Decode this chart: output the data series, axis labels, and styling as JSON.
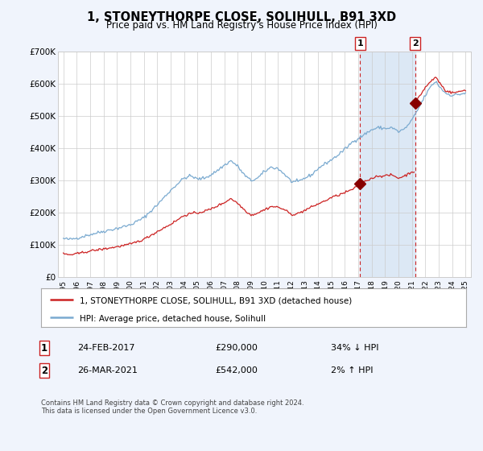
{
  "title": "1, STONEYTHORPE CLOSE, SOLIHULL, B91 3XD",
  "subtitle": "Price paid vs. HM Land Registry's House Price Index (HPI)",
  "legend_line1": "1, STONEYTHORPE CLOSE, SOLIHULL, B91 3XD (detached house)",
  "legend_line2": "HPI: Average price, detached house, Solihull",
  "footer": "Contains HM Land Registry data © Crown copyright and database right 2024.\nThis data is licensed under the Open Government Licence v3.0.",
  "sale1_date": "24-FEB-2017",
  "sale1_price": 290000,
  "sale1_hpi_diff": "34% ↓ HPI",
  "sale2_date": "26-MAR-2021",
  "sale2_price": 542000,
  "sale2_hpi_diff": "2% ↑ HPI",
  "sale1_x": 2017.14,
  "sale2_x": 2021.23,
  "ylim": [
    0,
    700000
  ],
  "yticks": [
    0,
    100000,
    200000,
    300000,
    400000,
    500000,
    600000,
    700000
  ],
  "ytick_labels": [
    "£0",
    "£100K",
    "£200K",
    "£300K",
    "£400K",
    "£500K",
    "£600K",
    "£700K"
  ],
  "xlim_start": 1994.6,
  "xlim_end": 2025.4,
  "bg_color": "#f0f4fc",
  "plot_bg": "#ffffff",
  "grid_color": "#cccccc",
  "hpi_line_color": "#7aaad0",
  "price_line_color": "#cc2222",
  "sale_marker_color": "#880000",
  "dashed_vline_color": "#cc2222",
  "shade_color": "#dce8f5",
  "hpi_keypoints": [
    [
      1995.0,
      120000
    ],
    [
      1995.5,
      118000
    ],
    [
      1996.0,
      122000
    ],
    [
      1997.0,
      133000
    ],
    [
      1998.0,
      143000
    ],
    [
      1999.0,
      152000
    ],
    [
      2000.0,
      163000
    ],
    [
      2001.0,
      185000
    ],
    [
      2002.0,
      225000
    ],
    [
      2003.0,
      270000
    ],
    [
      2003.5,
      290000
    ],
    [
      2004.0,
      308000
    ],
    [
      2004.5,
      315000
    ],
    [
      2005.0,
      305000
    ],
    [
      2005.5,
      308000
    ],
    [
      2006.0,
      318000
    ],
    [
      2006.5,
      332000
    ],
    [
      2007.0,
      348000
    ],
    [
      2007.5,
      362000
    ],
    [
      2008.0,
      345000
    ],
    [
      2008.5,
      318000
    ],
    [
      2009.0,
      300000
    ],
    [
      2009.5,
      308000
    ],
    [
      2010.0,
      328000
    ],
    [
      2010.5,
      342000
    ],
    [
      2011.0,
      338000
    ],
    [
      2011.5,
      320000
    ],
    [
      2012.0,
      298000
    ],
    [
      2012.5,
      296000
    ],
    [
      2013.0,
      308000
    ],
    [
      2013.5,
      318000
    ],
    [
      2014.0,
      338000
    ],
    [
      2014.5,
      352000
    ],
    [
      2015.0,
      365000
    ],
    [
      2015.5,
      380000
    ],
    [
      2016.0,
      398000
    ],
    [
      2016.5,
      418000
    ],
    [
      2017.0,
      432000
    ],
    [
      2017.5,
      445000
    ],
    [
      2018.0,
      458000
    ],
    [
      2018.5,
      465000
    ],
    [
      2019.0,
      462000
    ],
    [
      2019.5,
      465000
    ],
    [
      2020.0,
      452000
    ],
    [
      2020.5,
      462000
    ],
    [
      2021.0,
      488000
    ],
    [
      2021.5,
      525000
    ],
    [
      2022.0,
      565000
    ],
    [
      2022.5,
      598000
    ],
    [
      2022.8,
      608000
    ],
    [
      2023.0,
      595000
    ],
    [
      2023.5,
      572000
    ],
    [
      2024.0,
      565000
    ],
    [
      2024.5,
      568000
    ],
    [
      2025.0,
      572000
    ]
  ],
  "price_keypoints": [
    [
      1995.0,
      73000
    ],
    [
      1995.5,
      70000
    ],
    [
      1996.0,
      73000
    ],
    [
      1997.0,
      82000
    ],
    [
      1998.0,
      88000
    ],
    [
      1999.0,
      95000
    ],
    [
      2000.0,
      103000
    ],
    [
      2001.0,
      118000
    ],
    [
      2002.0,
      142000
    ],
    [
      2003.0,
      165000
    ],
    [
      2003.5,
      178000
    ],
    [
      2004.0,
      192000
    ],
    [
      2004.5,
      198000
    ],
    [
      2005.0,
      200000
    ],
    [
      2005.5,
      205000
    ],
    [
      2006.0,
      212000
    ],
    [
      2006.5,
      222000
    ],
    [
      2007.0,
      232000
    ],
    [
      2007.5,
      245000
    ],
    [
      2008.0,
      230000
    ],
    [
      2008.5,
      210000
    ],
    [
      2009.0,
      193000
    ],
    [
      2009.5,
      200000
    ],
    [
      2010.0,
      210000
    ],
    [
      2010.5,
      220000
    ],
    [
      2011.0,
      218000
    ],
    [
      2011.5,
      210000
    ],
    [
      2012.0,
      195000
    ],
    [
      2012.5,
      198000
    ],
    [
      2013.0,
      208000
    ],
    [
      2013.5,
      218000
    ],
    [
      2014.0,
      228000
    ],
    [
      2014.5,
      237000
    ],
    [
      2015.0,
      248000
    ],
    [
      2015.5,
      255000
    ],
    [
      2016.0,
      263000
    ],
    [
      2016.5,
      272000
    ],
    [
      2017.1,
      285000
    ],
    [
      2017.14,
      290000
    ],
    [
      2017.5,
      298000
    ],
    [
      2018.0,
      308000
    ],
    [
      2018.5,
      315000
    ],
    [
      2019.0,
      315000
    ],
    [
      2019.5,
      318000
    ],
    [
      2020.0,
      308000
    ],
    [
      2020.5,
      316000
    ],
    [
      2021.0,
      328000
    ],
    [
      2021.22,
      328000
    ],
    [
      2021.23,
      542000
    ],
    [
      2021.5,
      558000
    ],
    [
      2022.0,
      590000
    ],
    [
      2022.5,
      612000
    ],
    [
      2022.8,
      622000
    ],
    [
      2023.0,
      608000
    ],
    [
      2023.5,
      580000
    ],
    [
      2024.0,
      573000
    ],
    [
      2024.5,
      576000
    ],
    [
      2025.0,
      582000
    ]
  ]
}
